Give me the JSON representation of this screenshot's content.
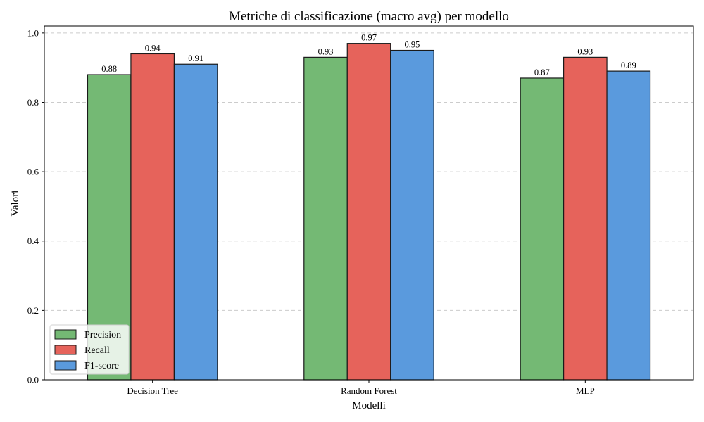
{
  "chart_data": {
    "type": "bar",
    "title": "Metriche di classificazione (macro avg) per modello",
    "xlabel": "Modelli",
    "ylabel": "Valori",
    "categories": [
      "Decision Tree",
      "Random Forest",
      "MLP"
    ],
    "series": [
      {
        "name": "Precision",
        "values": [
          0.88,
          0.93,
          0.87
        ],
        "color": "#74b974"
      },
      {
        "name": "Recall",
        "values": [
          0.94,
          0.97,
          0.93
        ],
        "color": "#e6635b"
      },
      {
        "name": "F1-score",
        "values": [
          0.91,
          0.95,
          0.89
        ],
        "color": "#5a9add"
      }
    ],
    "data_labels": [
      [
        "0.88",
        "0.93",
        "0.87"
      ],
      [
        "0.94",
        "0.97",
        "0.93"
      ],
      [
        "0.91",
        "0.95",
        "0.89"
      ]
    ],
    "ylim": [
      0,
      1.02
    ],
    "yticks": [
      0.0,
      0.2,
      0.4,
      0.6,
      0.8,
      1.0
    ],
    "ytick_labels": [
      "0.0",
      "0.2",
      "0.4",
      "0.6",
      "0.8",
      "1.0"
    ],
    "grid": true,
    "legend_position": "lower-left"
  }
}
